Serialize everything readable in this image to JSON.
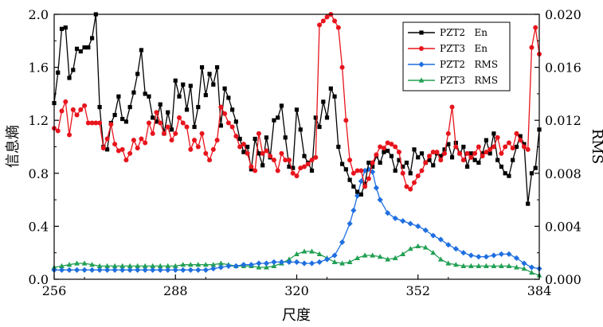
{
  "chart_data": {
    "type": "line",
    "xlabel": "尺度",
    "ylabel_left": "信息熵",
    "ylabel_right": "RMS",
    "xlim": [
      256,
      384
    ],
    "ylim_left": [
      0,
      2.0
    ],
    "ylim_right": [
      0,
      0.02
    ],
    "x_ticks": [
      "256",
      "288",
      "320",
      "352",
      "384"
    ],
    "y_left_ticks": [
      "0.0",
      "0.4",
      "0.8",
      "1.2",
      "1.6",
      "2.0"
    ],
    "y_right_ticks": [
      "0.000",
      "0.004",
      "0.008",
      "0.012",
      "0.016",
      "0.020"
    ],
    "grid": false,
    "legend_position": "top-right",
    "colors": {
      "pzt2_en": "#000000",
      "pzt3_en": "#e8141c",
      "pzt2_rms": "#1f6fe0",
      "pzt3_rms": "#22a054"
    },
    "series": [
      {
        "name": "PZT2   En",
        "axis": "left",
        "marker": "square",
        "x": [
          256,
          257,
          258,
          259,
          260,
          261,
          262,
          263,
          264,
          265,
          266,
          267,
          268,
          269,
          270,
          271,
          272,
          273,
          274,
          275,
          276,
          277,
          278,
          279,
          280,
          281,
          282,
          283,
          284,
          285,
          286,
          287,
          288,
          289,
          290,
          291,
          292,
          293,
          294,
          295,
          296,
          297,
          298,
          299,
          300,
          301,
          302,
          303,
          304,
          305,
          306,
          307,
          308,
          309,
          310,
          311,
          312,
          313,
          314,
          315,
          316,
          317,
          318,
          319,
          320,
          321,
          322,
          323,
          324,
          325,
          326,
          327,
          328,
          329,
          330,
          331,
          332,
          333,
          334,
          335,
          336,
          337,
          338,
          339,
          340,
          341,
          342,
          343,
          344,
          345,
          346,
          347,
          348,
          349,
          350,
          351,
          352,
          353,
          354,
          355,
          356,
          357,
          358,
          359,
          360,
          361,
          362,
          363,
          364,
          365,
          366,
          367,
          368,
          369,
          370,
          371,
          372,
          373,
          374,
          375,
          376,
          377,
          378,
          379,
          380,
          381,
          382,
          383,
          384
        ],
        "values": [
          1.33,
          1.56,
          1.89,
          1.9,
          1.52,
          1.58,
          1.74,
          1.72,
          1.75,
          1.75,
          1.82,
          2.0,
          1.3,
          1.0,
          0.98,
          1.18,
          1.24,
          1.38,
          1.21,
          1.19,
          1.3,
          1.41,
          1.55,
          1.73,
          1.4,
          1.38,
          1.22,
          1.19,
          1.32,
          1.1,
          1.26,
          1.13,
          1.5,
          1.38,
          1.47,
          1.28,
          1.46,
          1.15,
          1.3,
          1.6,
          1.39,
          1.55,
          1.47,
          1.6,
          1.16,
          1.44,
          1.37,
          1.28,
          1.19,
          1.06,
          0.96,
          1.0,
          0.83,
          1.06,
          0.95,
          0.86,
          1.07,
          0.92,
          1.2,
          1.22,
          1.31,
          1.07,
          0.85,
          0.84,
          1.28,
          1.13,
          0.93,
          0.88,
          0.82,
          1.22,
          1.15,
          1.34,
          1.22,
          1.44,
          1.38,
          1.0,
          0.87,
          0.83,
          0.75,
          0.7,
          0.66,
          0.64,
          0.72,
          0.88,
          0.85,
          0.93,
          0.88,
          0.96,
          0.97,
          0.93,
          0.82,
          0.9,
          0.85,
          0.88,
          0.8,
          0.98,
          0.92,
          0.95,
          0.88,
          0.9,
          0.86,
          0.95,
          0.93,
          0.98,
          1.02,
          0.92,
          1.03,
          0.95,
          1.0,
          0.85,
          0.95,
          0.9,
          0.88,
          0.95,
          1.05,
          0.95,
          1.1,
          0.9,
          0.85,
          0.8,
          0.78,
          0.9,
          1.0,
          1.08,
          1.02,
          0.57,
          0.8,
          0.84,
          1.13
        ]
      },
      {
        "name": "PZT3   En",
        "axis": "left",
        "marker": "circle",
        "x": [
          256,
          257,
          258,
          259,
          260,
          261,
          262,
          263,
          264,
          265,
          266,
          267,
          268,
          269,
          270,
          271,
          272,
          273,
          274,
          275,
          276,
          277,
          278,
          279,
          280,
          281,
          282,
          283,
          284,
          285,
          286,
          287,
          288,
          289,
          290,
          291,
          292,
          293,
          294,
          295,
          296,
          297,
          298,
          299,
          300,
          301,
          302,
          303,
          304,
          305,
          306,
          307,
          308,
          309,
          310,
          311,
          312,
          313,
          314,
          315,
          316,
          317,
          318,
          319,
          320,
          321,
          322,
          323,
          324,
          325,
          326,
          327,
          328,
          329,
          330,
          331,
          332,
          333,
          334,
          335,
          336,
          337,
          338,
          339,
          340,
          341,
          342,
          343,
          344,
          345,
          346,
          347,
          348,
          349,
          350,
          351,
          352,
          353,
          354,
          355,
          356,
          357,
          358,
          359,
          360,
          361,
          362,
          363,
          364,
          365,
          366,
          367,
          368,
          369,
          370,
          371,
          372,
          373,
          374,
          375,
          376,
          377,
          378,
          379,
          380,
          381,
          382,
          383,
          384
        ],
        "values": [
          1.14,
          1.12,
          1.27,
          1.34,
          1.09,
          1.28,
          1.24,
          1.28,
          1.31,
          1.18,
          1.18,
          1.18,
          1.18,
          0.99,
          1.06,
          1.17,
          1.02,
          0.97,
          0.98,
          0.9,
          0.95,
          1.05,
          0.99,
          1.06,
          1.03,
          1.18,
          1.1,
          1.26,
          1.18,
          1.1,
          1.15,
          1.05,
          1.1,
          1.22,
          1.18,
          1.15,
          0.98,
          1.05,
          1.0,
          1.1,
          0.95,
          0.9,
          0.98,
          1.05,
          1.3,
          1.25,
          1.18,
          1.15,
          1.08,
          1.0,
          1.02,
          0.95,
          0.85,
          0.82,
          1.1,
          0.95,
          0.97,
          0.93,
          0.9,
          0.82,
          0.95,
          0.9,
          0.9,
          0.8,
          0.78,
          0.84,
          0.85,
          0.87,
          0.9,
          0.92,
          1.92,
          1.95,
          1.98,
          2.0,
          1.95,
          1.9,
          1.6,
          1.2,
          0.9,
          0.8,
          0.82,
          0.82,
          0.7,
          0.76,
          0.88,
          0.94,
          1.0,
          0.99,
          1.03,
          1.02,
          1.0,
          0.96,
          0.8,
          0.7,
          0.68,
          0.73,
          0.78,
          0.82,
          0.88,
          0.93,
          0.96,
          0.96,
          0.9,
          0.95,
          1.1,
          1.3,
          1.0,
          0.95,
          0.9,
          0.95,
          0.92,
          0.95,
          1.0,
          0.93,
          0.96,
          0.98,
          1.0,
          1.07,
          0.95,
          1.0,
          1.03,
          0.99,
          1.1,
          1.05,
          1.0,
          0.98,
          1.75,
          1.9,
          1.7
        ]
      },
      {
        "name": "PZT2   RMS",
        "axis": "right",
        "marker": "diamond",
        "x": [
          256,
          258,
          260,
          262,
          264,
          266,
          268,
          270,
          272,
          274,
          276,
          278,
          280,
          282,
          284,
          286,
          288,
          290,
          292,
          294,
          296,
          298,
          300,
          302,
          304,
          306,
          308,
          310,
          312,
          314,
          316,
          318,
          320,
          322,
          324,
          326,
          328,
          330,
          332,
          334,
          335,
          336,
          337,
          338,
          339,
          340,
          341,
          342,
          344,
          346,
          348,
          350,
          352,
          354,
          356,
          358,
          360,
          362,
          364,
          366,
          368,
          370,
          372,
          374,
          376,
          378,
          380,
          382,
          384
        ],
        "values": [
          0.0007,
          0.0007,
          0.0007,
          0.0007,
          0.0007,
          0.0007,
          0.0007,
          0.0007,
          0.0007,
          0.0007,
          0.0007,
          0.0007,
          0.0007,
          0.0007,
          0.0007,
          0.0007,
          0.0007,
          0.0007,
          0.0007,
          0.0007,
          0.0007,
          0.0008,
          0.0009,
          0.001,
          0.001,
          0.0011,
          0.0011,
          0.0012,
          0.0012,
          0.0013,
          0.0013,
          0.0013,
          0.0013,
          0.0012,
          0.0012,
          0.0013,
          0.0015,
          0.0018,
          0.0028,
          0.0042,
          0.0052,
          0.0063,
          0.0074,
          0.0082,
          0.0083,
          0.0081,
          0.0069,
          0.006,
          0.005,
          0.0046,
          0.0044,
          0.0042,
          0.004,
          0.0037,
          0.0033,
          0.003,
          0.0026,
          0.0023,
          0.002,
          0.0018,
          0.0017,
          0.0017,
          0.0018,
          0.0019,
          0.0019,
          0.0016,
          0.0012,
          0.0009,
          0.0008
        ]
      },
      {
        "name": "PZT3   RMS",
        "axis": "right",
        "marker": "triangle",
        "x": [
          256,
          258,
          260,
          262,
          264,
          266,
          268,
          270,
          272,
          274,
          276,
          278,
          280,
          282,
          284,
          286,
          288,
          290,
          292,
          294,
          296,
          298,
          300,
          302,
          304,
          306,
          308,
          310,
          312,
          314,
          316,
          318,
          320,
          322,
          324,
          326,
          328,
          330,
          332,
          334,
          336,
          338,
          340,
          342,
          344,
          346,
          348,
          350,
          352,
          354,
          356,
          358,
          360,
          362,
          364,
          366,
          368,
          370,
          372,
          374,
          376,
          378,
          380,
          382,
          384
        ],
        "values": [
          0.0009,
          0.001,
          0.0011,
          0.0012,
          0.0012,
          0.0011,
          0.001,
          0.001,
          0.001,
          0.001,
          0.001,
          0.001,
          0.001,
          0.001,
          0.001,
          0.001,
          0.001,
          0.0011,
          0.0011,
          0.0011,
          0.0011,
          0.0011,
          0.0012,
          0.0011,
          0.001,
          0.001,
          0.001,
          0.0009,
          0.0009,
          0.001,
          0.0012,
          0.0015,
          0.0019,
          0.0021,
          0.0021,
          0.0019,
          0.0016,
          0.0013,
          0.0012,
          0.0013,
          0.0016,
          0.0018,
          0.0018,
          0.0017,
          0.0015,
          0.0016,
          0.0019,
          0.0023,
          0.0025,
          0.0024,
          0.002,
          0.0015,
          0.0012,
          0.0011,
          0.001,
          0.001,
          0.001,
          0.001,
          0.001,
          0.001,
          0.001,
          0.0009,
          0.0008,
          0.0005,
          0.0003
        ]
      }
    ]
  }
}
